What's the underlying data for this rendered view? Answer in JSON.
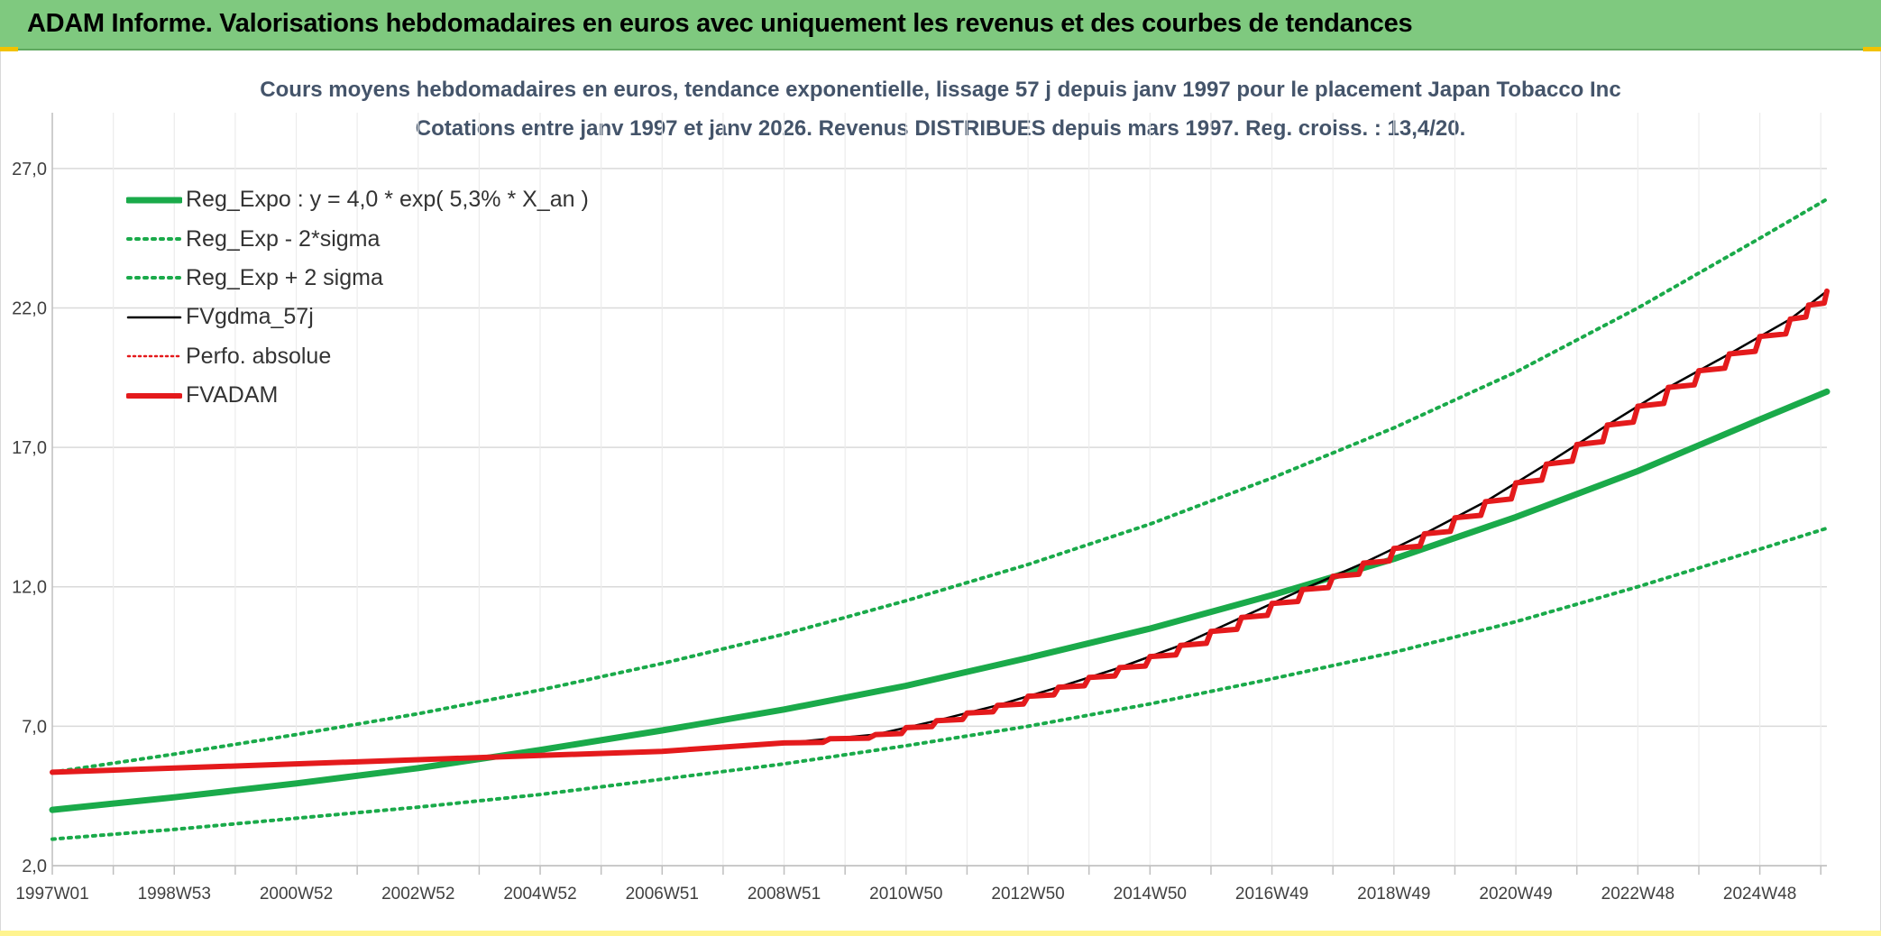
{
  "header": {
    "title": "ADAM Informe. Valorisations hebdomadaires en euros avec uniquement les revenus et des courbes de tendances"
  },
  "chart_data": {
    "type": "line",
    "title_line1": "Cours moyens hebdomadaires en euros, tendance exponentielle, lissage 57 j depuis janv 1997 pour le placement Japan Tobacco Inc",
    "title_line2": "Cotations entre janv 1997 et janv 2026. Revenus DISTRIBUES depuis mars 1997. Reg. croiss. : 13,4/20.",
    "ylim": [
      2.0,
      29.0
    ],
    "yticks": [
      2.0,
      7.0,
      12.0,
      17.0,
      22.0,
      27.0
    ],
    "ytick_labels": [
      "2,0",
      "7,0",
      "12,0",
      "17,0",
      "22,0",
      "27,0"
    ],
    "xlim": [
      1997.0,
      2026.1
    ],
    "xticks": [
      1997.0,
      1999.0,
      2001.0,
      2003.0,
      2005.0,
      2007.0,
      2009.0,
      2011.0,
      2013.0,
      2015.0,
      2017.0,
      2019.0,
      2021.0,
      2023.0,
      2025.0
    ],
    "xtick_labels": [
      "1997W01",
      "1998W53",
      "2000W52",
      "2002W52",
      "2004W52",
      "2006W51",
      "2008W51",
      "2010W50",
      "2012W50",
      "2014W50",
      "2016W49",
      "2018W49",
      "2020W49",
      "2022W48",
      "2024W48"
    ],
    "grid": true,
    "legend_position": "top-left",
    "series": [
      {
        "name": "Reg_Expo : y = 4,0 * exp( 5,3% *  X_an )",
        "color": "#1aaa4a",
        "style": "solid-thick",
        "x": [
          1997,
          1999,
          2001,
          2003,
          2005,
          2007,
          2009,
          2011,
          2013,
          2015,
          2017,
          2019,
          2021,
          2023,
          2025,
          2026.1
        ],
        "y": [
          4.0,
          4.45,
          4.95,
          5.5,
          6.15,
          6.85,
          7.6,
          8.45,
          9.45,
          10.5,
          11.7,
          13.0,
          14.5,
          16.15,
          18.0,
          19.0
        ]
      },
      {
        "name": "Reg_Exp - 2*sigma",
        "color": "#1aaa4a",
        "style": "dotted",
        "x": [
          1997,
          1999,
          2001,
          2003,
          2005,
          2007,
          2009,
          2011,
          2013,
          2015,
          2017,
          2019,
          2021,
          2023,
          2025,
          2026.1
        ],
        "y": [
          2.95,
          3.3,
          3.7,
          4.1,
          4.55,
          5.1,
          5.65,
          6.3,
          7.0,
          7.8,
          8.7,
          9.65,
          10.75,
          12.0,
          13.35,
          14.1
        ]
      },
      {
        "name": "Reg_Exp + 2 sigma",
        "color": "#1aaa4a",
        "style": "dotted",
        "x": [
          1997,
          1999,
          2001,
          2003,
          2005,
          2007,
          2009,
          2011,
          2013,
          2015,
          2017,
          2019,
          2021,
          2023,
          2025,
          2026.1
        ],
        "y": [
          5.35,
          6.0,
          6.7,
          7.45,
          8.3,
          9.25,
          10.3,
          11.5,
          12.8,
          14.25,
          15.9,
          17.7,
          19.7,
          22.0,
          24.5,
          25.9
        ]
      },
      {
        "name": "FVgdma_57j",
        "color": "#000000",
        "style": "solid",
        "x": [
          1997,
          1999,
          2001,
          2003,
          2005,
          2007,
          2009,
          2010.5,
          2011.5,
          2012.5,
          2013.5,
          2014.5,
          2015.5,
          2016.5,
          2017.5,
          2018.5,
          2019.5,
          2020.5,
          2021.5,
          2022.5,
          2023.5,
          2024.5,
          2025.5,
          2026.1
        ],
        "y": [
          5.35,
          5.5,
          5.65,
          5.8,
          5.95,
          6.1,
          6.4,
          6.7,
          7.2,
          7.75,
          8.4,
          9.1,
          9.9,
          10.9,
          11.9,
          12.85,
          13.9,
          15.05,
          16.4,
          17.8,
          19.15,
          20.35,
          21.6,
          22.6
        ]
      },
      {
        "name": "Perfo. absolue",
        "color": "#e41a1c",
        "style": "dotted-thin",
        "x": [],
        "y": []
      },
      {
        "name": "FVADAM",
        "color": "#e41a1c",
        "style": "solid-thick-stepped",
        "x": [
          1997,
          1999,
          2001,
          2003,
          2005,
          2007,
          2009,
          2010.5,
          2011.5,
          2012.5,
          2013.5,
          2014.5,
          2015.5,
          2016.5,
          2017.5,
          2018.5,
          2019.5,
          2020.5,
          2021.5,
          2022.5,
          2023.5,
          2024.5,
          2025.5,
          2026.1
        ],
        "y": [
          5.35,
          5.5,
          5.65,
          5.8,
          5.95,
          6.1,
          6.4,
          6.7,
          7.2,
          7.75,
          8.4,
          9.1,
          9.9,
          10.9,
          11.9,
          12.85,
          13.9,
          15.05,
          16.4,
          17.8,
          19.15,
          20.35,
          21.6,
          22.6
        ]
      }
    ]
  }
}
